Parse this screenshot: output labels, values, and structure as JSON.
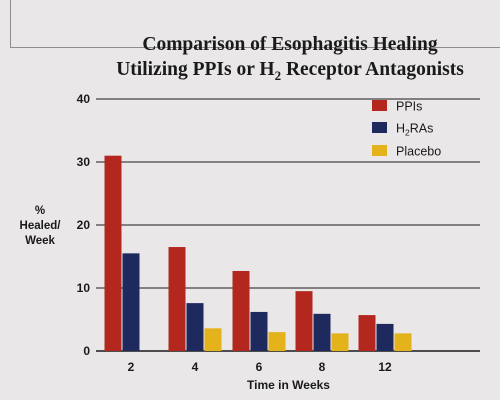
{
  "chart_data": {
    "type": "bar",
    "title_line1": "Comparison of Esophagitis Healing",
    "title_line2": "Utilizing PPIs or H",
    "title_sub": "2",
    "title_line2_end": " Receptor Antagonists",
    "ylabel_lines": [
      "%",
      "Healed/",
      "Week"
    ],
    "xlabel": "Time in Weeks",
    "categories": [
      "2",
      "4",
      "6",
      "8",
      "12"
    ],
    "ylim": [
      0,
      40
    ],
    "yticks": [
      "0",
      "10",
      "20",
      "30",
      "40"
    ],
    "grid": true,
    "legend_position": "top-right",
    "series": [
      {
        "name": "PPIs",
        "color": "#b3271f",
        "values": [
          31,
          16.5,
          12.7,
          9.5,
          5.7
        ]
      },
      {
        "name": "H2RAs",
        "name_main": "H",
        "name_sub": "2",
        "name_end": "RAs",
        "color": "#1e2a5e",
        "values": [
          15.5,
          7.6,
          6.2,
          5.9,
          4.3
        ]
      },
      {
        "name": "Placebo",
        "color": "#e4b21a",
        "values": [
          0,
          3.6,
          3.0,
          2.8,
          2.8
        ]
      }
    ]
  }
}
